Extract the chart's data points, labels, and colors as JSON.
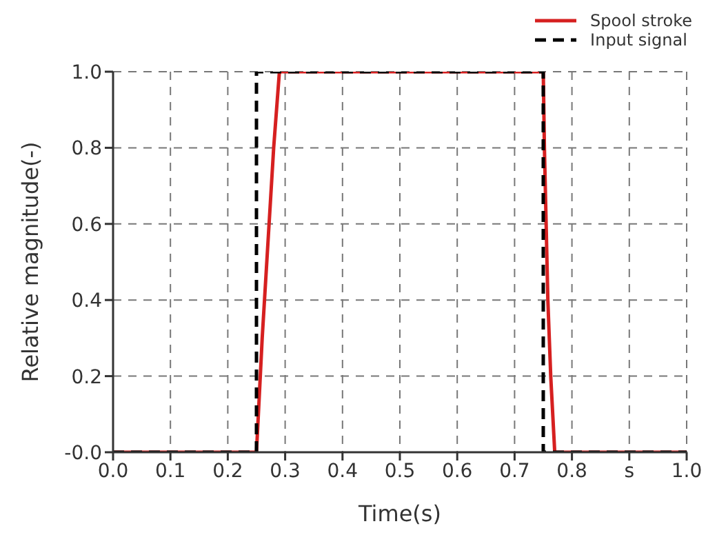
{
  "chart_data": {
    "type": "line",
    "xlabel": "Time(s)",
    "ylabel": "Relative magnitude(-)",
    "xlim": [
      0,
      1
    ],
    "xticks": [
      {
        "value": 0,
        "label": "0.0"
      },
      {
        "value": 0.1,
        "label": "0.1"
      },
      {
        "value": 0.2,
        "label": "0.2"
      },
      {
        "value": 0.3,
        "label": "0.3"
      },
      {
        "value": 0.4,
        "label": "0.4"
      },
      {
        "value": 0.5,
        "label": "0.5"
      },
      {
        "value": 0.6,
        "label": "0.6"
      },
      {
        "value": 0.7,
        "label": "0.7"
      },
      {
        "value": 0.8,
        "label": "0.8"
      },
      {
        "value": 0.9,
        "label": "s"
      },
      {
        "value": 1,
        "label": "1.0"
      }
    ],
    "ylim": [
      0,
      1
    ],
    "yticks": [
      {
        "value": 0,
        "label": "-0.0"
      },
      {
        "value": 0.2,
        "label": "0.2"
      },
      {
        "value": 0.4,
        "label": "0.4"
      },
      {
        "value": 0.6,
        "label": "0.6"
      },
      {
        "value": 0.8,
        "label": "0.8"
      },
      {
        "value": 1,
        "label": "1.0"
      }
    ],
    "grid": true,
    "legend": "top right",
    "marker": "none",
    "series": [
      {
        "name": "Spool stroke",
        "color": "#d62020",
        "line_style": "solid",
        "x": [
          0,
          0.25,
          0.26,
          0.27,
          0.28,
          0.29,
          0.75,
          0.752,
          0.758,
          0.763,
          0.77,
          1
        ],
        "values": [
          0,
          0,
          0.3,
          0.55,
          0.8,
          1,
          1,
          0.8,
          0.4,
          0.2,
          0,
          0
        ]
      },
      {
        "name": "Input signal",
        "color": "#000000",
        "line_style": "dashed",
        "x": [
          0,
          0.25,
          0.25,
          0.75,
          0.75,
          1
        ],
        "values": [
          0,
          0,
          1,
          1,
          0,
          0
        ]
      }
    ]
  }
}
